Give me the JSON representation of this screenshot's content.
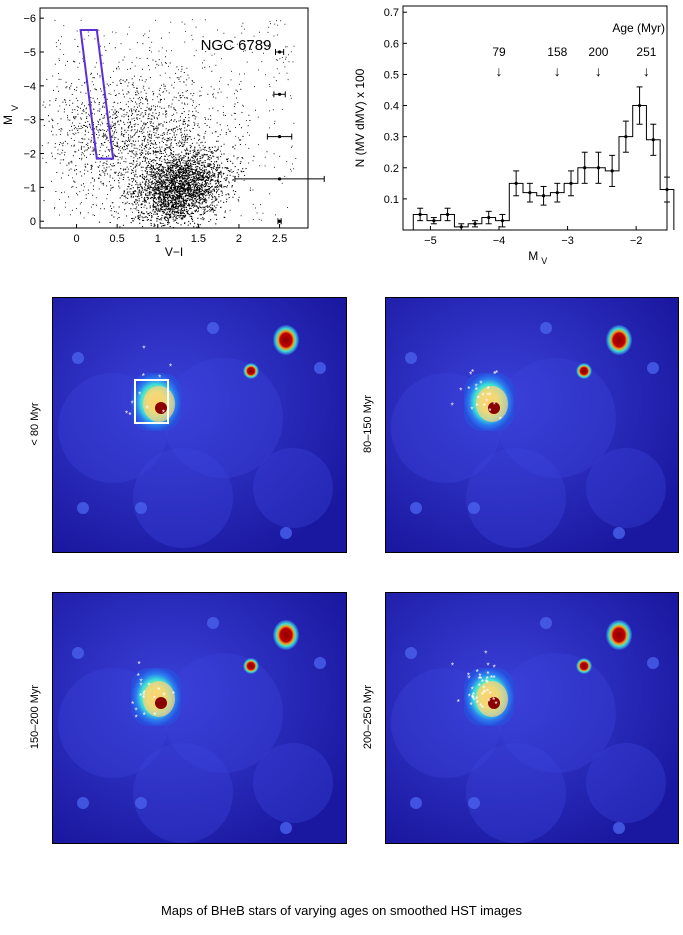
{
  "figure": {
    "caption": "Maps of BHeB stars of varying ages on smoothed HST images"
  },
  "chart_data": [
    {
      "type": "scatter",
      "title": "NGC 6789",
      "xlabel": "V−I",
      "ylabel": "M",
      "ylabel_sub": "V",
      "xlim": [
        -0.45,
        2.85
      ],
      "ylim": [
        0.2,
        -6.3
      ],
      "xticks": [
        "0",
        "0.5",
        "1",
        "1.5",
        "2",
        "2.5"
      ],
      "yticks": [
        "0",
        "−1",
        "−2",
        "−3",
        "−4",
        "−5",
        "−6"
      ],
      "selection_box": [
        [
          0.05,
          -5.65
        ],
        [
          0.25,
          -5.65
        ],
        [
          0.45,
          -1.85
        ],
        [
          0.25,
          -1.85
        ]
      ],
      "error_bars": [
        {
          "x": 2.5,
          "y": -5.0,
          "xerr": 0.05
        },
        {
          "x": 2.5,
          "y": -3.75,
          "xerr": 0.07
        },
        {
          "x": 2.5,
          "y": -2.5,
          "xerr": 0.15
        },
        {
          "x": 2.5,
          "y": -1.25,
          "xerr": 0.55
        },
        {
          "x": 2.5,
          "y": 0.0,
          "xerr": 0.02
        }
      ],
      "box_color": "#5b2fd8"
    },
    {
      "type": "histogram",
      "xlabel": "M",
      "xlabel_sub": "V",
      "ylabel": "N (M",
      "ylabel_full": "N (MV dMV) x 100",
      "xlim": [
        -5.4,
        -1.55
      ],
      "ylim": [
        0,
        0.72
      ],
      "xticks": [
        "−5",
        "−4",
        "−3",
        "−2"
      ],
      "yticks": [
        "0.1",
        "0.2",
        "0.3",
        "0.4",
        "0.5",
        "0.6",
        "0.7"
      ],
      "bin_left": -5.25,
      "bin_width": 0.2,
      "values": [
        0.05,
        0.03,
        0.05,
        0.01,
        0.02,
        0.04,
        0.03,
        0.15,
        0.12,
        0.11,
        0.12,
        0.15,
        0.2,
        0.2,
        0.19,
        0.3,
        0.4,
        0.29,
        0.13
      ],
      "errors": [
        0.02,
        0.01,
        0.02,
        0.01,
        0.01,
        0.02,
        0.02,
        0.04,
        0.03,
        0.03,
        0.03,
        0.04,
        0.05,
        0.05,
        0.05,
        0.05,
        0.06,
        0.05,
        0.04
      ],
      "age_header": "Age (Myr)",
      "age_markers": [
        {
          "label": "79",
          "x": -4.0
        },
        {
          "label": "158",
          "x": -3.15
        },
        {
          "label": "200",
          "x": -2.55
        },
        {
          "label": "251",
          "x": -1.85
        }
      ]
    },
    {
      "type": "heatmap",
      "label": "< 80 Myr",
      "stars": 10,
      "highlight_box": true
    },
    {
      "type": "heatmap",
      "label": "80–150 Myr",
      "stars": 22
    },
    {
      "type": "heatmap",
      "label": "150–200 Myr",
      "stars": 18
    },
    {
      "type": "heatmap",
      "label": "200–250 Myr",
      "stars": 40
    }
  ]
}
